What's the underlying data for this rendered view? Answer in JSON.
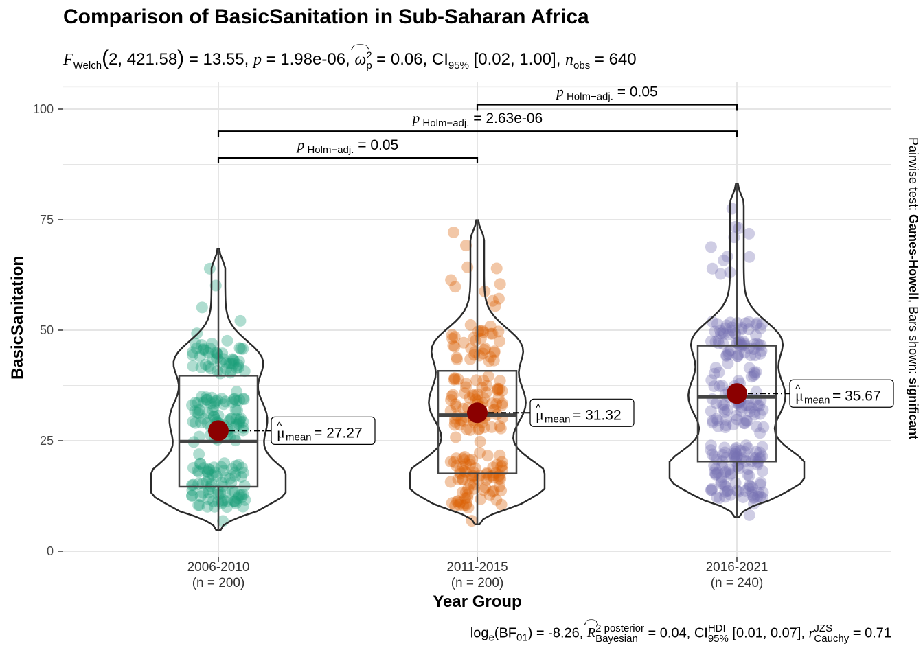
{
  "title": "Comparison of BasicSanitation in Sub-Saharan Africa",
  "subtitle": {
    "stat_label": "F",
    "stat_sub": "Welch",
    "df": "2, 421.58",
    "stat_value": "= 13.55,",
    "p_label": "p",
    "p_value": "= 1.98e-06,",
    "effect_label": "ω",
    "effect_sup": "2",
    "effect_sub": "p",
    "effect_value": "= 0.06,",
    "ci_label": "CI",
    "ci_sub": "95%",
    "ci_value": "[0.02, 1.00],",
    "n_label": "n",
    "n_sub": "obs",
    "n_value": "= 640"
  },
  "caption": {
    "bf_prefix": "log",
    "bf_sub": "e",
    "bf_term": "(BF",
    "bf_term_sub": "01",
    "bf_value": ") = -8.26,",
    "r2_label": "R",
    "r2_sup": "2 posterior",
    "r2_sub": "Bayesian",
    "r2_value": "= 0.04,",
    "ci_label": "CI",
    "ci_sup": "HDI",
    "ci_sub": "95%",
    "ci_value": "[0.01, 0.07],",
    "r_label": "r",
    "r_sup": "JZS",
    "r_sub": "Cauchy",
    "r_value": "= 0.71"
  },
  "side_label": {
    "prefix": "Pairwise test: ",
    "test": "Games-Howell",
    "middle": ", Bars shown: ",
    "shown": "significant"
  },
  "chart_data": {
    "type": "violin-box-scatter",
    "xlabel": "Year Group",
    "ylabel": "BasicSanitation",
    "ylim": [
      0,
      105
    ],
    "yticks": [
      0,
      25,
      50,
      75,
      100
    ],
    "grid": true,
    "groups": [
      {
        "name": "2006-2010",
        "n_label": "(n = 200)",
        "n": 200,
        "color": "#1b9e77",
        "min": 4.8,
        "q1": 14.6,
        "median": 24.8,
        "q3": 39.7,
        "max": 68.3,
        "mean": 27.27,
        "mean_label": "= 27.27",
        "dense_low": [
          10,
          20
        ],
        "dense_mid": [
          25,
          35
        ],
        "dense_high": [
          40,
          47
        ]
      },
      {
        "name": "2011-2015",
        "n_label": "(n = 200)",
        "n": 200,
        "color": "#d95f02",
        "min": 6.1,
        "q1": 17.6,
        "median": 30.8,
        "q3": 40.8,
        "max": 74.9,
        "mean": 31.32,
        "mean_label": "= 31.32",
        "dense_low": [
          10,
          22
        ],
        "dense_mid": [
          27,
          40
        ],
        "dense_high": [
          43,
          50
        ]
      },
      {
        "name": "2016-2021",
        "n_label": "(n = 240)",
        "n": 240,
        "color": "#7570b3",
        "min": 7.7,
        "q1": 20.3,
        "median": 34.9,
        "q3": 46.5,
        "max": 83.1,
        "mean": 35.67,
        "mean_label": "= 35.67",
        "dense_low": [
          12,
          24
        ],
        "dense_mid": [
          28,
          42
        ],
        "dense_high": [
          44,
          52
        ]
      }
    ],
    "mean_symbol": "μ",
    "mean_sub": "mean",
    "comparisons": [
      {
        "from": "2006-2010",
        "to": "2011-2015",
        "y": 89,
        "p_label": "p",
        "p_sub": "Holm−adj.",
        "p_value": "= 0.05"
      },
      {
        "from": "2006-2010",
        "to": "2016-2021",
        "y": 95,
        "p_label": "p",
        "p_sub": "Holm−adj.",
        "p_value": "= 2.63e-06"
      },
      {
        "from": "2011-2015",
        "to": "2016-2021",
        "y": 101,
        "p_label": "p",
        "p_sub": "Holm−adj.",
        "p_value": "= 0.05"
      }
    ]
  }
}
